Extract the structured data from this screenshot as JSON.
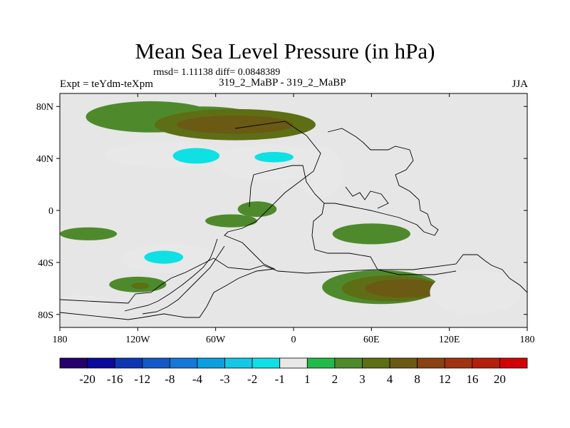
{
  "header": {
    "title": "Mean Sea Level Pressure (in hPa)",
    "stats": "rmsd= 1.11138 diff= 0.0848389",
    "expt": "Expt = teYdm-teXpm",
    "runs": "319_2_MaBP - 319_2_MaBP",
    "season": "JJA"
  },
  "chart_data": {
    "type": "heatmap",
    "title": "Mean Sea Level Pressure (in hPa)",
    "xlabel": "",
    "ylabel": "",
    "xlim": [
      -180,
      180
    ],
    "ylim": [
      -90,
      90
    ],
    "x_ticks": [
      {
        "value": -180,
        "label": "180"
      },
      {
        "value": -120,
        "label": "120W"
      },
      {
        "value": -60,
        "label": "60W"
      },
      {
        "value": 0,
        "label": "0"
      },
      {
        "value": 60,
        "label": "60E"
      },
      {
        "value": 120,
        "label": "120E"
      },
      {
        "value": 180,
        "label": "180"
      }
    ],
    "y_ticks": [
      {
        "value": 80,
        "label": "80N"
      },
      {
        "value": 40,
        "label": "40N"
      },
      {
        "value": 0,
        "label": "0"
      },
      {
        "value": -40,
        "label": "40S"
      },
      {
        "value": -80,
        "label": "80S"
      }
    ],
    "colorbar": {
      "colors": [
        "#23006b",
        "#0a0a9c",
        "#0d36b5",
        "#1158c8",
        "#1478d8",
        "#0aa0e0",
        "#13c8e6",
        "#0fe0e4",
        "#e8e8e8",
        "#22bb4a",
        "#4e8a2c",
        "#5e6e14",
        "#6a5a14",
        "#8a4210",
        "#a03410",
        "#b61e0c",
        "#d40008"
      ],
      "labels": [
        "-20",
        "-16",
        "-12",
        "-8",
        "-4",
        "-3",
        "-2",
        "-1",
        "1",
        "2",
        "3",
        "4",
        "8",
        "12",
        "16",
        "20"
      ]
    },
    "anomaly_regions": [
      {
        "lon": -110,
        "lat": 72,
        "rx": 50,
        "ry": 12,
        "value": 2
      },
      {
        "lon": -70,
        "lat": 69,
        "rx": 48,
        "ry": 11,
        "value": 2
      },
      {
        "lon": -45,
        "lat": 66,
        "rx": 62,
        "ry": 12,
        "value": 3
      },
      {
        "lon": -45,
        "lat": 66,
        "rx": 45,
        "ry": 7,
        "value": 4
      },
      {
        "lon": -100,
        "lat": 43,
        "rx": 45,
        "ry": 10,
        "value": -1
      },
      {
        "lon": -20,
        "lat": 37,
        "rx": 42,
        "ry": 14,
        "value": -1
      },
      {
        "lon": 20,
        "lat": 30,
        "rx": 18,
        "ry": 20,
        "value": -1
      },
      {
        "lon": -75,
        "lat": 42,
        "rx": 18,
        "ry": 6,
        "value": -2
      },
      {
        "lon": -15,
        "lat": 41,
        "rx": 15,
        "ry": 4,
        "value": -2
      },
      {
        "lon": -48,
        "lat": -8,
        "rx": 20,
        "ry": 5,
        "value": 2
      },
      {
        "lon": -28,
        "lat": 1,
        "rx": 15,
        "ry": 6,
        "value": 2
      },
      {
        "lon": -158,
        "lat": -18,
        "rx": 22,
        "ry": 5,
        "value": 2
      },
      {
        "lon": 60,
        "lat": -18,
        "rx": 30,
        "ry": 8,
        "value": 2
      },
      {
        "lon": -95,
        "lat": -37,
        "rx": 38,
        "ry": 11,
        "value": -1
      },
      {
        "lon": -100,
        "lat": -36,
        "rx": 15,
        "ry": 5,
        "value": -2
      },
      {
        "lon": -120,
        "lat": -57,
        "rx": 22,
        "ry": 6,
        "value": 2
      },
      {
        "lon": -118,
        "lat": -58,
        "rx": 7,
        "ry": 2.5,
        "value": 3
      },
      {
        "lon": 67,
        "lat": -59,
        "rx": 45,
        "ry": 13,
        "value": 2
      },
      {
        "lon": 75,
        "lat": -60,
        "rx": 38,
        "ry": 10,
        "value": 3
      },
      {
        "lon": 85,
        "lat": -60,
        "rx": 30,
        "ry": 7,
        "value": 4
      },
      {
        "lon": 140,
        "lat": -63,
        "rx": 35,
        "ry": 17,
        "value": -1
      },
      {
        "lon": -165,
        "lat": -75,
        "rx": 25,
        "ry": 10,
        "value": -1
      }
    ]
  }
}
